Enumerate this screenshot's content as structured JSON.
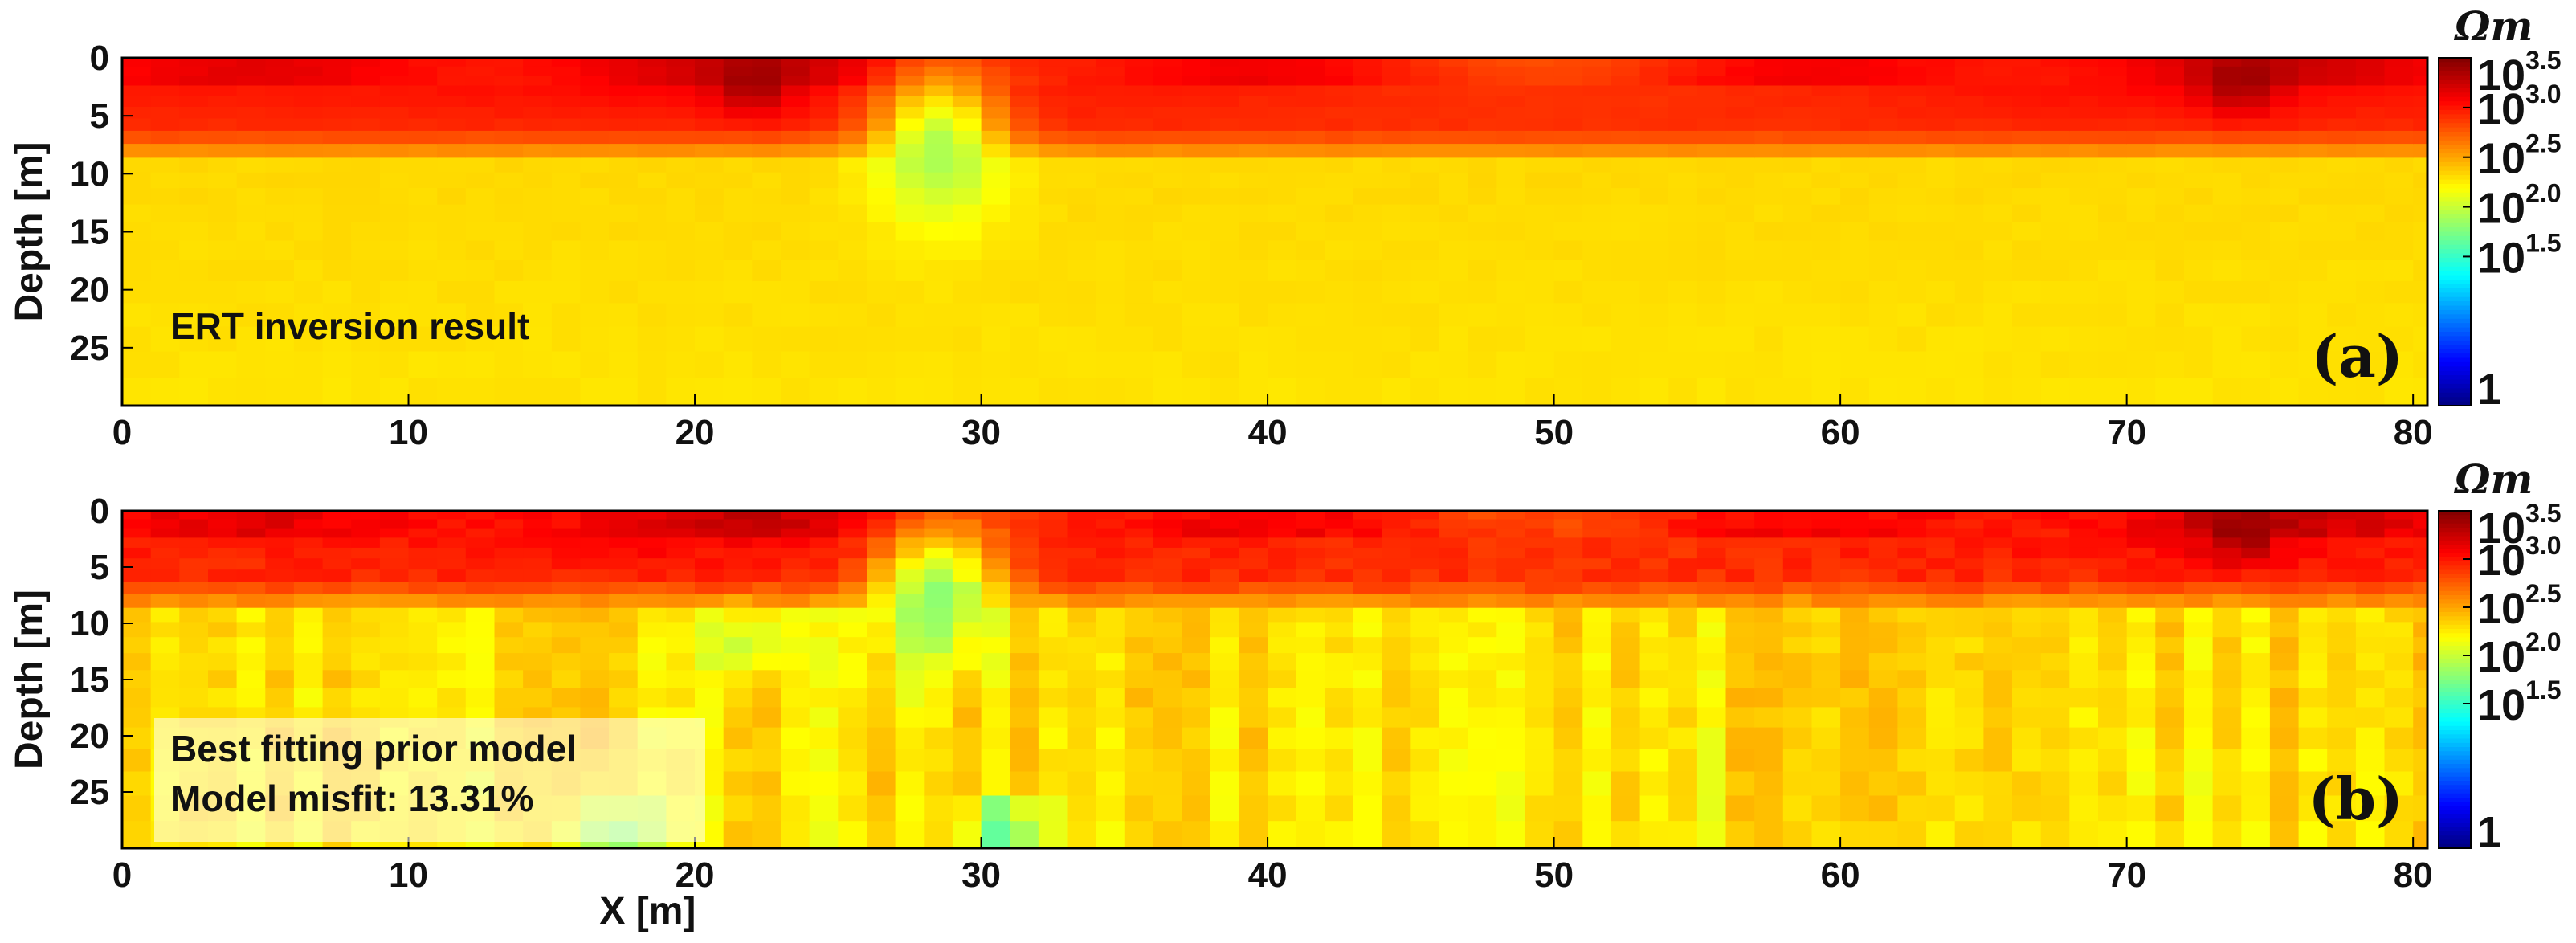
{
  "chart_data": [
    {
      "type": "heatmap",
      "panel_label": "(a)",
      "annotation": [
        "ERT inversion result"
      ],
      "xlabel": "",
      "ylabel": "Depth [m]",
      "xlim": [
        0,
        80.5
      ],
      "ylim": [
        0,
        30
      ],
      "x_ticks": [
        0,
        10,
        20,
        30,
        40,
        50,
        60,
        70,
        80
      ],
      "y_ticks": [
        0,
        5,
        10,
        15,
        20,
        25
      ],
      "colorbar": {
        "unit": "Ωm",
        "scale": "log10",
        "range_log10": [
          0,
          3.5
        ],
        "ticks": [
          {
            "base": "10",
            "exp": "3.5",
            "log10": 3.5
          },
          {
            "base": "10",
            "exp": "3.0",
            "log10": 3.0
          },
          {
            "base": "10",
            "exp": "2.5",
            "log10": 2.5
          },
          {
            "base": "10",
            "exp": "2.0",
            "log10": 2.0
          },
          {
            "base": "10",
            "exp": "1.5",
            "log10": 1.5
          },
          {
            "base": "1",
            "exp": "",
            "log10": 0
          }
        ]
      },
      "layers_log10": [
        {
          "depth_from": 0,
          "depth_to": 2,
          "log10_resistivity": 3.1
        },
        {
          "depth_from": 2,
          "depth_to": 6,
          "log10_resistivity": 3.0
        },
        {
          "depth_from": 6,
          "depth_to": 9,
          "log10_resistivity": 2.6
        },
        {
          "depth_from": 9,
          "depth_to": 30,
          "log10_resistivity": 2.3
        }
      ],
      "anomalies_log10": [
        {
          "x": 28.5,
          "depth": 8,
          "log10_resistivity": 1.9
        },
        {
          "x": 22,
          "depth": 2,
          "log10_resistivity": 3.4
        },
        {
          "x": 74,
          "depth": 2,
          "log10_resistivity": 3.4
        }
      ]
    },
    {
      "type": "heatmap",
      "panel_label": "(b)",
      "annotation": [
        "Best fitting prior model",
        "Model misfit: 13.31%"
      ],
      "xlabel": "X [m]",
      "ylabel": "Depth [m]",
      "xlim": [
        0,
        80.5
      ],
      "ylim": [
        0,
        30
      ],
      "x_ticks": [
        0,
        10,
        20,
        30,
        40,
        50,
        60,
        70,
        80
      ],
      "y_ticks": [
        0,
        5,
        10,
        15,
        20,
        25
      ],
      "colorbar": {
        "unit": "Ωm",
        "scale": "log10",
        "range_log10": [
          0,
          3.5
        ],
        "ticks": [
          {
            "base": "10",
            "exp": "3.5",
            "log10": 3.5
          },
          {
            "base": "10",
            "exp": "3.0",
            "log10": 3.0
          },
          {
            "base": "10",
            "exp": "2.5",
            "log10": 2.5
          },
          {
            "base": "10",
            "exp": "2.0",
            "log10": 2.0
          },
          {
            "base": "10",
            "exp": "1.5",
            "log10": 1.5
          },
          {
            "base": "1",
            "exp": "",
            "log10": 0
          }
        ]
      },
      "layers_log10": [
        {
          "depth_from": 0,
          "depth_to": 2,
          "log10_resistivity": 3.1
        },
        {
          "depth_from": 2,
          "depth_to": 6,
          "log10_resistivity": 3.0
        },
        {
          "depth_from": 6,
          "depth_to": 9,
          "log10_resistivity": 2.6
        },
        {
          "depth_from": 9,
          "depth_to": 30,
          "log10_resistivity": 2.3
        }
      ],
      "anomalies_log10": [
        {
          "x": 28.5,
          "depth": 8,
          "log10_resistivity": 1.8
        },
        {
          "x": 30.8,
          "depth": 28,
          "log10_resistivity": 1.6
        },
        {
          "x": 17,
          "depth": 28,
          "log10_resistivity": 1.7
        },
        {
          "x": 22,
          "depth": 12,
          "log10_resistivity": 1.9
        },
        {
          "x": 74,
          "depth": 2,
          "log10_resistivity": 3.4
        }
      ]
    }
  ]
}
